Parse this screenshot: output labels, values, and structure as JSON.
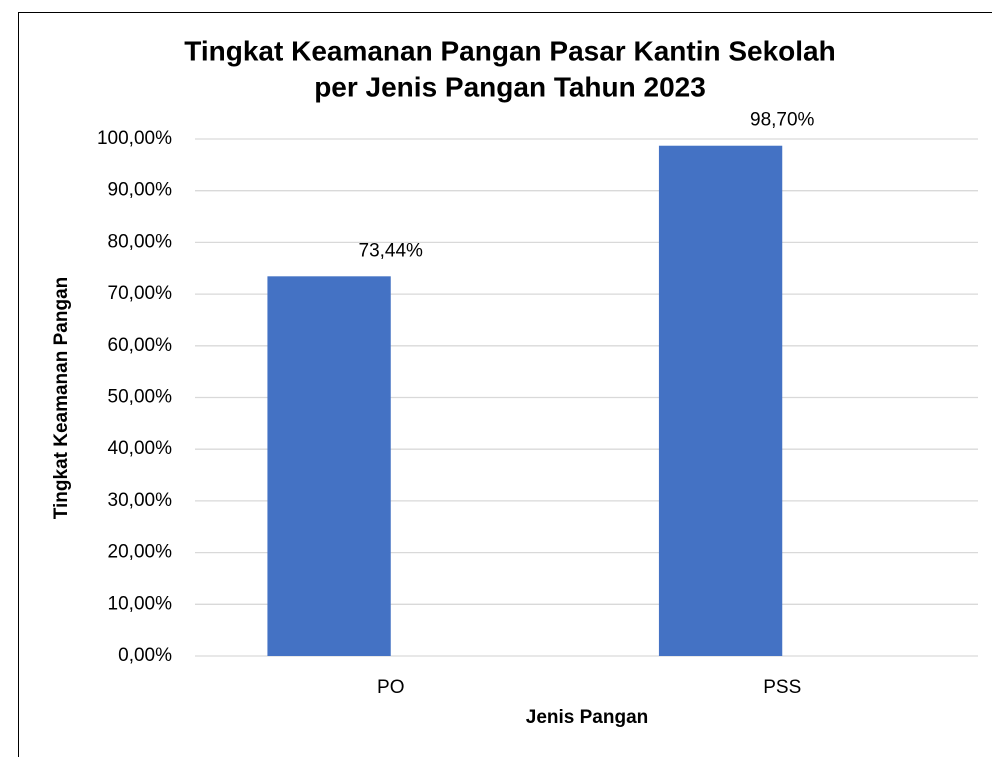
{
  "chart_data": {
    "type": "bar",
    "title": [
      "Tingkat Keamanan Pangan Pasar Kantin Sekolah",
      "per Jenis Pangan Tahun 2023"
    ],
    "x_label": "Jenis Pangan",
    "y_label": "Tingkat Keamanan Pangan",
    "categories": [
      "PO",
      "PSS"
    ],
    "values": [
      73.44,
      98.7
    ],
    "value_labels": [
      "73,44%",
      "98,70%"
    ],
    "color": "#4472c4",
    "ylim": [
      0,
      100
    ],
    "yticks": [
      {
        "value": 0,
        "label": "0,00%"
      },
      {
        "value": 10,
        "label": "10,00%"
      },
      {
        "value": 20,
        "label": "20,00%"
      },
      {
        "value": 30,
        "label": "30,00%"
      },
      {
        "value": 40,
        "label": "40,00%"
      },
      {
        "value": 50,
        "label": "50,00%"
      },
      {
        "value": 60,
        "label": "60,00%"
      },
      {
        "value": 70,
        "label": "70,00%"
      },
      {
        "value": 80,
        "label": "80,00%"
      },
      {
        "value": 90,
        "label": "90,00%"
      },
      {
        "value": 100,
        "label": "100,00%"
      }
    ],
    "grid": true
  }
}
